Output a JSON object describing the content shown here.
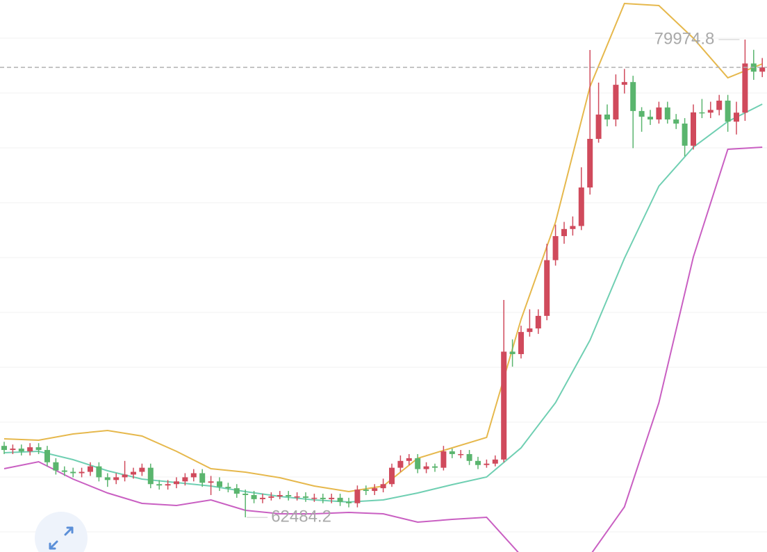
{
  "chart_data": {
    "type": "candlestick",
    "ylim": [
      61215,
      81424
    ],
    "up_color": "#d04a5c",
    "down_color": "#5ab56e",
    "open": [
      65100,
      64950,
      65000,
      64900,
      65050,
      64950,
      64500,
      64200,
      64150,
      64100,
      64150,
      64350,
      63950,
      63850,
      63950,
      64050,
      64150,
      64300,
      63700,
      63650,
      63700,
      63800,
      63950,
      64100,
      63750,
      63800,
      63600,
      63550,
      63350,
      63300,
      63150,
      63200,
      63250,
      63300,
      63250,
      63250,
      63200,
      63200,
      63150,
      63200,
      63050,
      63000,
      63500,
      63450,
      63550,
      63700,
      64300,
      64550,
      64650,
      64250,
      64350,
      64300,
      64900,
      64800,
      64800,
      64550,
      64400,
      64450,
      64600,
      68550,
      68460,
      69270,
      69400,
      69860,
      71900,
      72780,
      73040,
      73150,
      74560,
      76340,
      77230,
      77050,
      78320,
      78420,
      77360,
      77150,
      77050,
      77490,
      77050,
      76900,
      76090,
      77310,
      77300,
      77400,
      77740,
      76970,
      77300,
      79100,
      78800
    ],
    "high": [
      65250,
      65150,
      65150,
      65200,
      65200,
      65100,
      64650,
      64350,
      64300,
      64300,
      64500,
      64500,
      64100,
      64100,
      64550,
      64300,
      64450,
      64450,
      63850,
      63850,
      63950,
      64100,
      64250,
      64250,
      64000,
      63950,
      63750,
      63700,
      63500,
      63450,
      63350,
      63400,
      63450,
      63450,
      63400,
      63400,
      63350,
      63350,
      63350,
      63350,
      63200,
      63650,
      63650,
      63700,
      63900,
      64450,
      64750,
      64800,
      64800,
      64500,
      64450,
      65100,
      65000,
      64950,
      64950,
      64700,
      64600,
      64750,
      70443,
      69000,
      69500,
      70100,
      70100,
      72500,
      73200,
      73300,
      73500,
      75300,
      79594,
      78400,
      77600,
      78700,
      78900,
      78650,
      77500,
      77400,
      77700,
      77700,
      77250,
      77100,
      77600,
      77800,
      77700,
      77950,
      77950,
      77700,
      79974.8,
      79600,
      79300
    ],
    "low": [
      64800,
      64800,
      64750,
      64750,
      64800,
      64350,
      64050,
      64000,
      63950,
      63950,
      64000,
      63800,
      63600,
      63700,
      63800,
      63900,
      64000,
      63550,
      63500,
      63500,
      63550,
      63650,
      63800,
      63600,
      63300,
      63450,
      63400,
      63200,
      62484.2,
      63000,
      63000,
      63100,
      63150,
      63100,
      63100,
      63050,
      63050,
      63000,
      63000,
      62900,
      62850,
      62850,
      63300,
      63300,
      63400,
      63600,
      64150,
      64400,
      64100,
      64100,
      64150,
      64200,
      64650,
      64650,
      64400,
      64250,
      64300,
      64350,
      64500,
      68000,
      68300,
      69100,
      69200,
      69700,
      71700,
      72500,
      72800,
      73000,
      74300,
      76200,
      76800,
      76800,
      78000,
      76000,
      76600,
      76850,
      76900,
      76900,
      76700,
      75700,
      75950,
      77100,
      77100,
      77200,
      76600,
      76500,
      77000,
      78500,
      78600
    ],
    "close": [
      64950,
      65000,
      64900,
      65050,
      64950,
      64500,
      64200,
      64150,
      64100,
      64150,
      64350,
      63950,
      63850,
      63950,
      64050,
      64150,
      64300,
      63700,
      63650,
      63700,
      63800,
      63950,
      64100,
      63750,
      63800,
      63600,
      63550,
      63350,
      63300,
      63150,
      63200,
      63250,
      63300,
      63250,
      63250,
      63200,
      63200,
      63150,
      63200,
      63050,
      63000,
      63500,
      63450,
      63550,
      63700,
      64300,
      64550,
      64650,
      64250,
      64350,
      64300,
      64900,
      64800,
      64800,
      64550,
      64400,
      64450,
      64600,
      68550,
      68460,
      69270,
      69400,
      69860,
      71900,
      72780,
      73040,
      73150,
      74560,
      76340,
      77230,
      77050,
      78320,
      78420,
      77360,
      77150,
      77050,
      77490,
      77050,
      76900,
      76090,
      77310,
      77300,
      77400,
      77740,
      76970,
      77300,
      79100,
      78800,
      78958
    ],
    "bands": {
      "x": [
        0,
        4,
        8,
        12,
        16,
        20,
        24,
        28,
        32,
        36,
        40,
        44,
        48,
        52,
        56,
        60,
        64,
        68,
        72,
        76,
        80,
        84,
        88
      ],
      "series": [
        {
          "color": "#e6b84c",
          "values": [
            65359,
            65308,
            65536,
            65664,
            65460,
            64901,
            64265,
            64138,
            63935,
            63630,
            63427,
            63630,
            64647,
            65028,
            65409,
            69731,
            73290,
            78246,
            81297,
            81221,
            80026,
            78577,
            79085
          ]
        },
        {
          "color": "#6fcfb2",
          "values": [
            64850,
            64901,
            64596,
            64189,
            63884,
            63757,
            63630,
            63427,
            63249,
            63122,
            63045,
            63122,
            63376,
            63681,
            63960,
            65028,
            66680,
            68968,
            71968,
            74611,
            76035,
            76975,
            77611
          ]
        },
        {
          "color": "#c95fc2",
          "values": [
            64265,
            64520,
            63884,
            63376,
            62994,
            62918,
            63122,
            62740,
            62613,
            62613,
            62664,
            62613,
            62308,
            62410,
            62486,
            61088,
            60707,
            61088,
            62867,
            66680,
            72019,
            75959,
            76035
          ]
        }
      ]
    }
  }
}
